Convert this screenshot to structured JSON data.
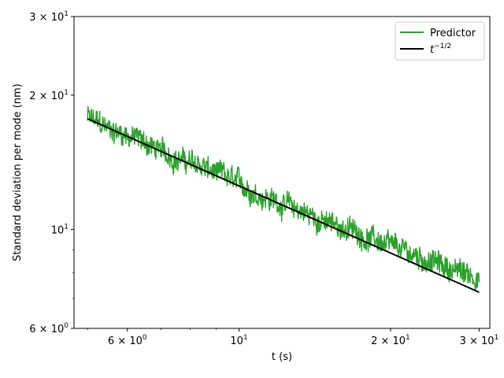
{
  "chart_data": {
    "type": "line",
    "xlabel": "t (s)",
    "ylabel": "Standard deviation per mode (nm)",
    "xscale": "log",
    "yscale": "log",
    "xlim": [
      4.7,
      31.5
    ],
    "ylim": [
      6,
      30
    ],
    "x_ticks": [
      {
        "value": 6,
        "label": "6 × 10⁰"
      },
      {
        "value": 10,
        "label": "10¹"
      },
      {
        "value": 20,
        "label": "2 × 10¹"
      },
      {
        "value": 30,
        "label": "3 × 10¹"
      }
    ],
    "y_ticks": [
      {
        "value": 6,
        "label": "6 × 10⁰"
      },
      {
        "value": 10,
        "label": "10¹"
      },
      {
        "value": 20,
        "label": "2 × 10¹"
      },
      {
        "value": 30,
        "label": "3 × 10¹"
      }
    ],
    "legend_position": "top-right",
    "grid": false,
    "series": [
      {
        "name": "Predictor",
        "color": "#2ca02c",
        "style": "noisy",
        "x": [
          5.0,
          5.5,
          6.0,
          6.5,
          7.0,
          7.5,
          8.0,
          8.5,
          9.0,
          9.5,
          10.0,
          11.0,
          12.0,
          13.0,
          14.0,
          15.0,
          16.0,
          17.0,
          18.0,
          19.0,
          20.0,
          22.0,
          24.0,
          26.0,
          28.0,
          30.0
        ],
        "y": [
          17.8,
          16.8,
          16.3,
          15.7,
          14.9,
          14.5,
          14.1,
          13.8,
          13.3,
          13.0,
          12.6,
          12.0,
          11.5,
          11.1,
          10.7,
          10.3,
          10.1,
          9.9,
          9.6,
          9.4,
          9.1,
          8.8,
          8.5,
          8.2,
          8.0,
          7.8
        ]
      },
      {
        "name": "t^{-1/2}",
        "color": "#000000",
        "style": "line",
        "x": [
          5.0,
          30.0
        ],
        "y": [
          17.7,
          7.23
        ]
      }
    ]
  },
  "legend": {
    "predictor_label": "Predictor",
    "power_base": "t",
    "power_exponent": "−1/2"
  }
}
